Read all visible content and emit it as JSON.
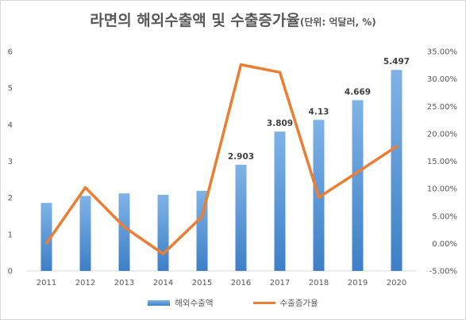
{
  "chart_data": {
    "type": "bar",
    "title": "라면의 해외수출액 및 수출증가율",
    "subtitle": "(단위: 억달러, %)",
    "categories": [
      "2011",
      "2012",
      "2013",
      "2014",
      "2015",
      "2016",
      "2017",
      "2018",
      "2019",
      "2020"
    ],
    "series": [
      {
        "name": "해외수출액",
        "type": "bar",
        "axis": "left",
        "values": [
          1.86,
          2.05,
          2.12,
          2.08,
          2.19,
          2.903,
          3.809,
          4.13,
          4.669,
          5.497
        ],
        "data_labels": [
          "",
          "",
          "",
          "",
          "",
          "2.903",
          "3.809",
          "4.13",
          "4.669",
          "5.497"
        ]
      },
      {
        "name": "수출증가율",
        "type": "line",
        "axis": "right",
        "values": [
          0.0,
          10.2,
          3.0,
          -1.9,
          4.9,
          32.6,
          31.2,
          8.4,
          13.0,
          17.7
        ]
      }
    ],
    "y_left": {
      "min": 0,
      "max": 6,
      "step": 1,
      "ticks": [
        "0",
        "1",
        "2",
        "3",
        "4",
        "5",
        "6"
      ]
    },
    "y_right": {
      "min": -5,
      "max": 35,
      "step": 5,
      "ticks": [
        "-5.00%",
        "0.00%",
        "5.00%",
        "10.00%",
        "15.00%",
        "20.00%",
        "25.00%",
        "30.00%",
        "35.00%"
      ]
    },
    "grid": false,
    "legend_position": "bottom",
    "colors": {
      "bar_top": "#7fb3e6",
      "bar_bottom": "#3d7fc7",
      "line": "#ed7d31",
      "text": "#595959",
      "label": "#404040"
    }
  }
}
